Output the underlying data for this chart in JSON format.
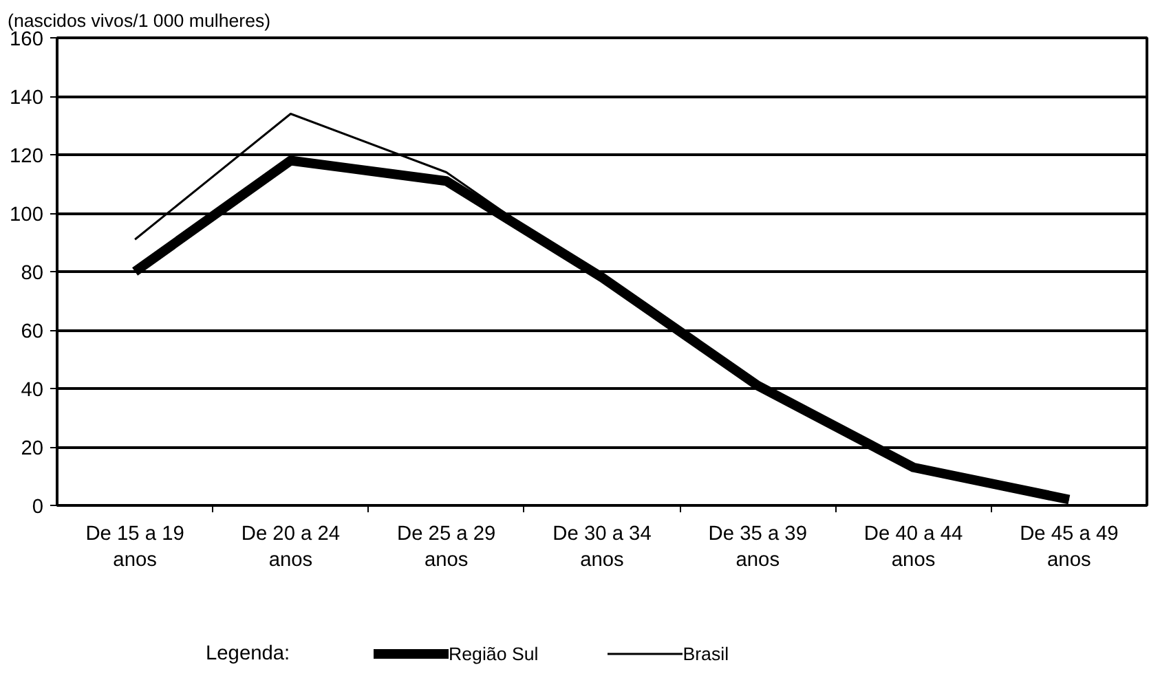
{
  "chart_data": {
    "type": "line",
    "ylabel": "(nascidos vivos/1 000 mulheres)",
    "legend_title": "Legenda:",
    "categories": [
      "De 15 a 19\nanos",
      "De 20 a 24\nanos",
      "De 25 a 29\nanos",
      "De 30 a 34\nanos",
      "De 35 a 39\nanos",
      "De 40 a 44\nanos",
      "De 45 a 49\nanos"
    ],
    "series": [
      {
        "name": "Região Sul",
        "color": "#000000",
        "values": [
          80,
          118,
          111,
          78,
          41,
          13,
          2
        ]
      },
      {
        "name": "Brasil",
        "color": "#000000",
        "values": [
          91,
          134,
          114,
          77,
          41,
          13,
          2
        ]
      }
    ],
    "ylim": [
      0,
      160
    ],
    "yticks": [
      0,
      20,
      40,
      60,
      80,
      100,
      120,
      140,
      160
    ],
    "grid": "y",
    "legend": "bottom",
    "line_style": "solid"
  }
}
